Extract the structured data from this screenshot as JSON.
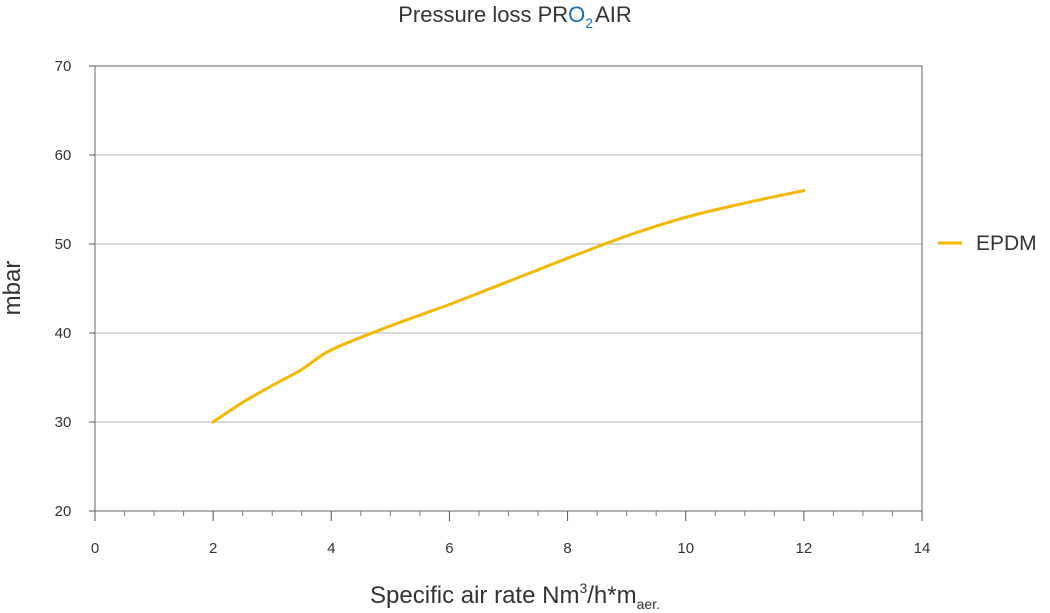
{
  "chart_data": {
    "type": "line",
    "title": {
      "prefix": "Pressure loss PR",
      "highlight": "O",
      "highlight_subscript": "2",
      "suffix": "AIR",
      "highlight_color": "#1a6fb5"
    },
    "xlabel": {
      "text": "Specific air rate Nm",
      "sup": "3",
      "mid": "/h*m",
      "sub": "aer."
    },
    "ylabel": "mbar",
    "xlim": [
      0,
      14
    ],
    "ylim": [
      20,
      70
    ],
    "xticks": [
      "0",
      "2",
      "4",
      "6",
      "8",
      "10",
      "12",
      "14"
    ],
    "yticks": [
      "20",
      "30",
      "40",
      "50",
      "60",
      "70"
    ],
    "grid": true,
    "legend_position": "right",
    "series": [
      {
        "name": "EPDM",
        "color": "#f5b800",
        "x": [
          2,
          2.5,
          3,
          3.5,
          4,
          5,
          6,
          7,
          8,
          9,
          10,
          11,
          12
        ],
        "y": [
          30,
          32.2,
          34.1,
          35.9,
          38.1,
          40.8,
          43.2,
          45.8,
          48.4,
          50.9,
          53.0,
          54.6,
          56.0
        ]
      }
    ]
  }
}
